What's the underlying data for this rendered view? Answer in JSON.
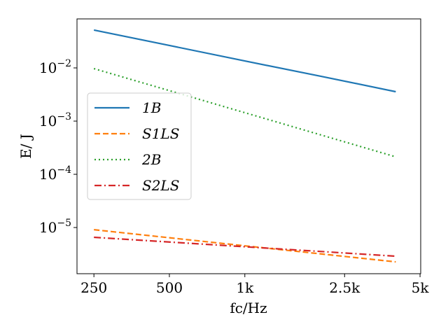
{
  "chart_data": {
    "type": "line",
    "xlabel": "fc/Hz",
    "ylabel": "E/ J",
    "x": [
      250,
      500,
      1000,
      2000,
      4000
    ],
    "series": [
      {
        "name": "1B",
        "color": "#1f77b4",
        "dash": "solid",
        "values": [
          0.0514,
          0.0264,
          0.0135,
          0.007,
          0.00357
        ]
      },
      {
        "name": "S1LS",
        "color": "#ff7f0e",
        "dash": "dashed",
        "values": [
          9.1e-06,
          6.42e-06,
          4.53e-06,
          3.2e-06,
          2.26e-06
        ]
      },
      {
        "name": "2B",
        "color": "#2ca02c",
        "dash": "dotted",
        "values": [
          0.0097,
          0.00374,
          0.00144,
          0.000554,
          0.000213
        ]
      },
      {
        "name": "S2LS",
        "color": "#d62728",
        "dash": "dashdot",
        "values": [
          6.55e-06,
          5.34e-06,
          4.35e-06,
          3.55e-06,
          2.89e-06
        ]
      }
    ],
    "xscale": "log",
    "yscale": "log",
    "xlim": [
      214,
      5030
    ],
    "ylim": [
      1.355e-06,
      0.0834
    ],
    "xticks": [
      250,
      500,
      {
        "value": 1000,
        "label": "1k"
      },
      {
        "value": 2500,
        "label": "2.5k"
      },
      {
        "value": 5000,
        "label": "5k"
      }
    ],
    "yticks": [
      {
        "value": 1e-05,
        "label": "10−5"
      },
      {
        "value": 0.0001,
        "label": "10−4"
      },
      {
        "value": 0.001,
        "label": "10−3"
      },
      {
        "value": 0.01,
        "label": "10−2"
      }
    ],
    "legend": "center left"
  }
}
